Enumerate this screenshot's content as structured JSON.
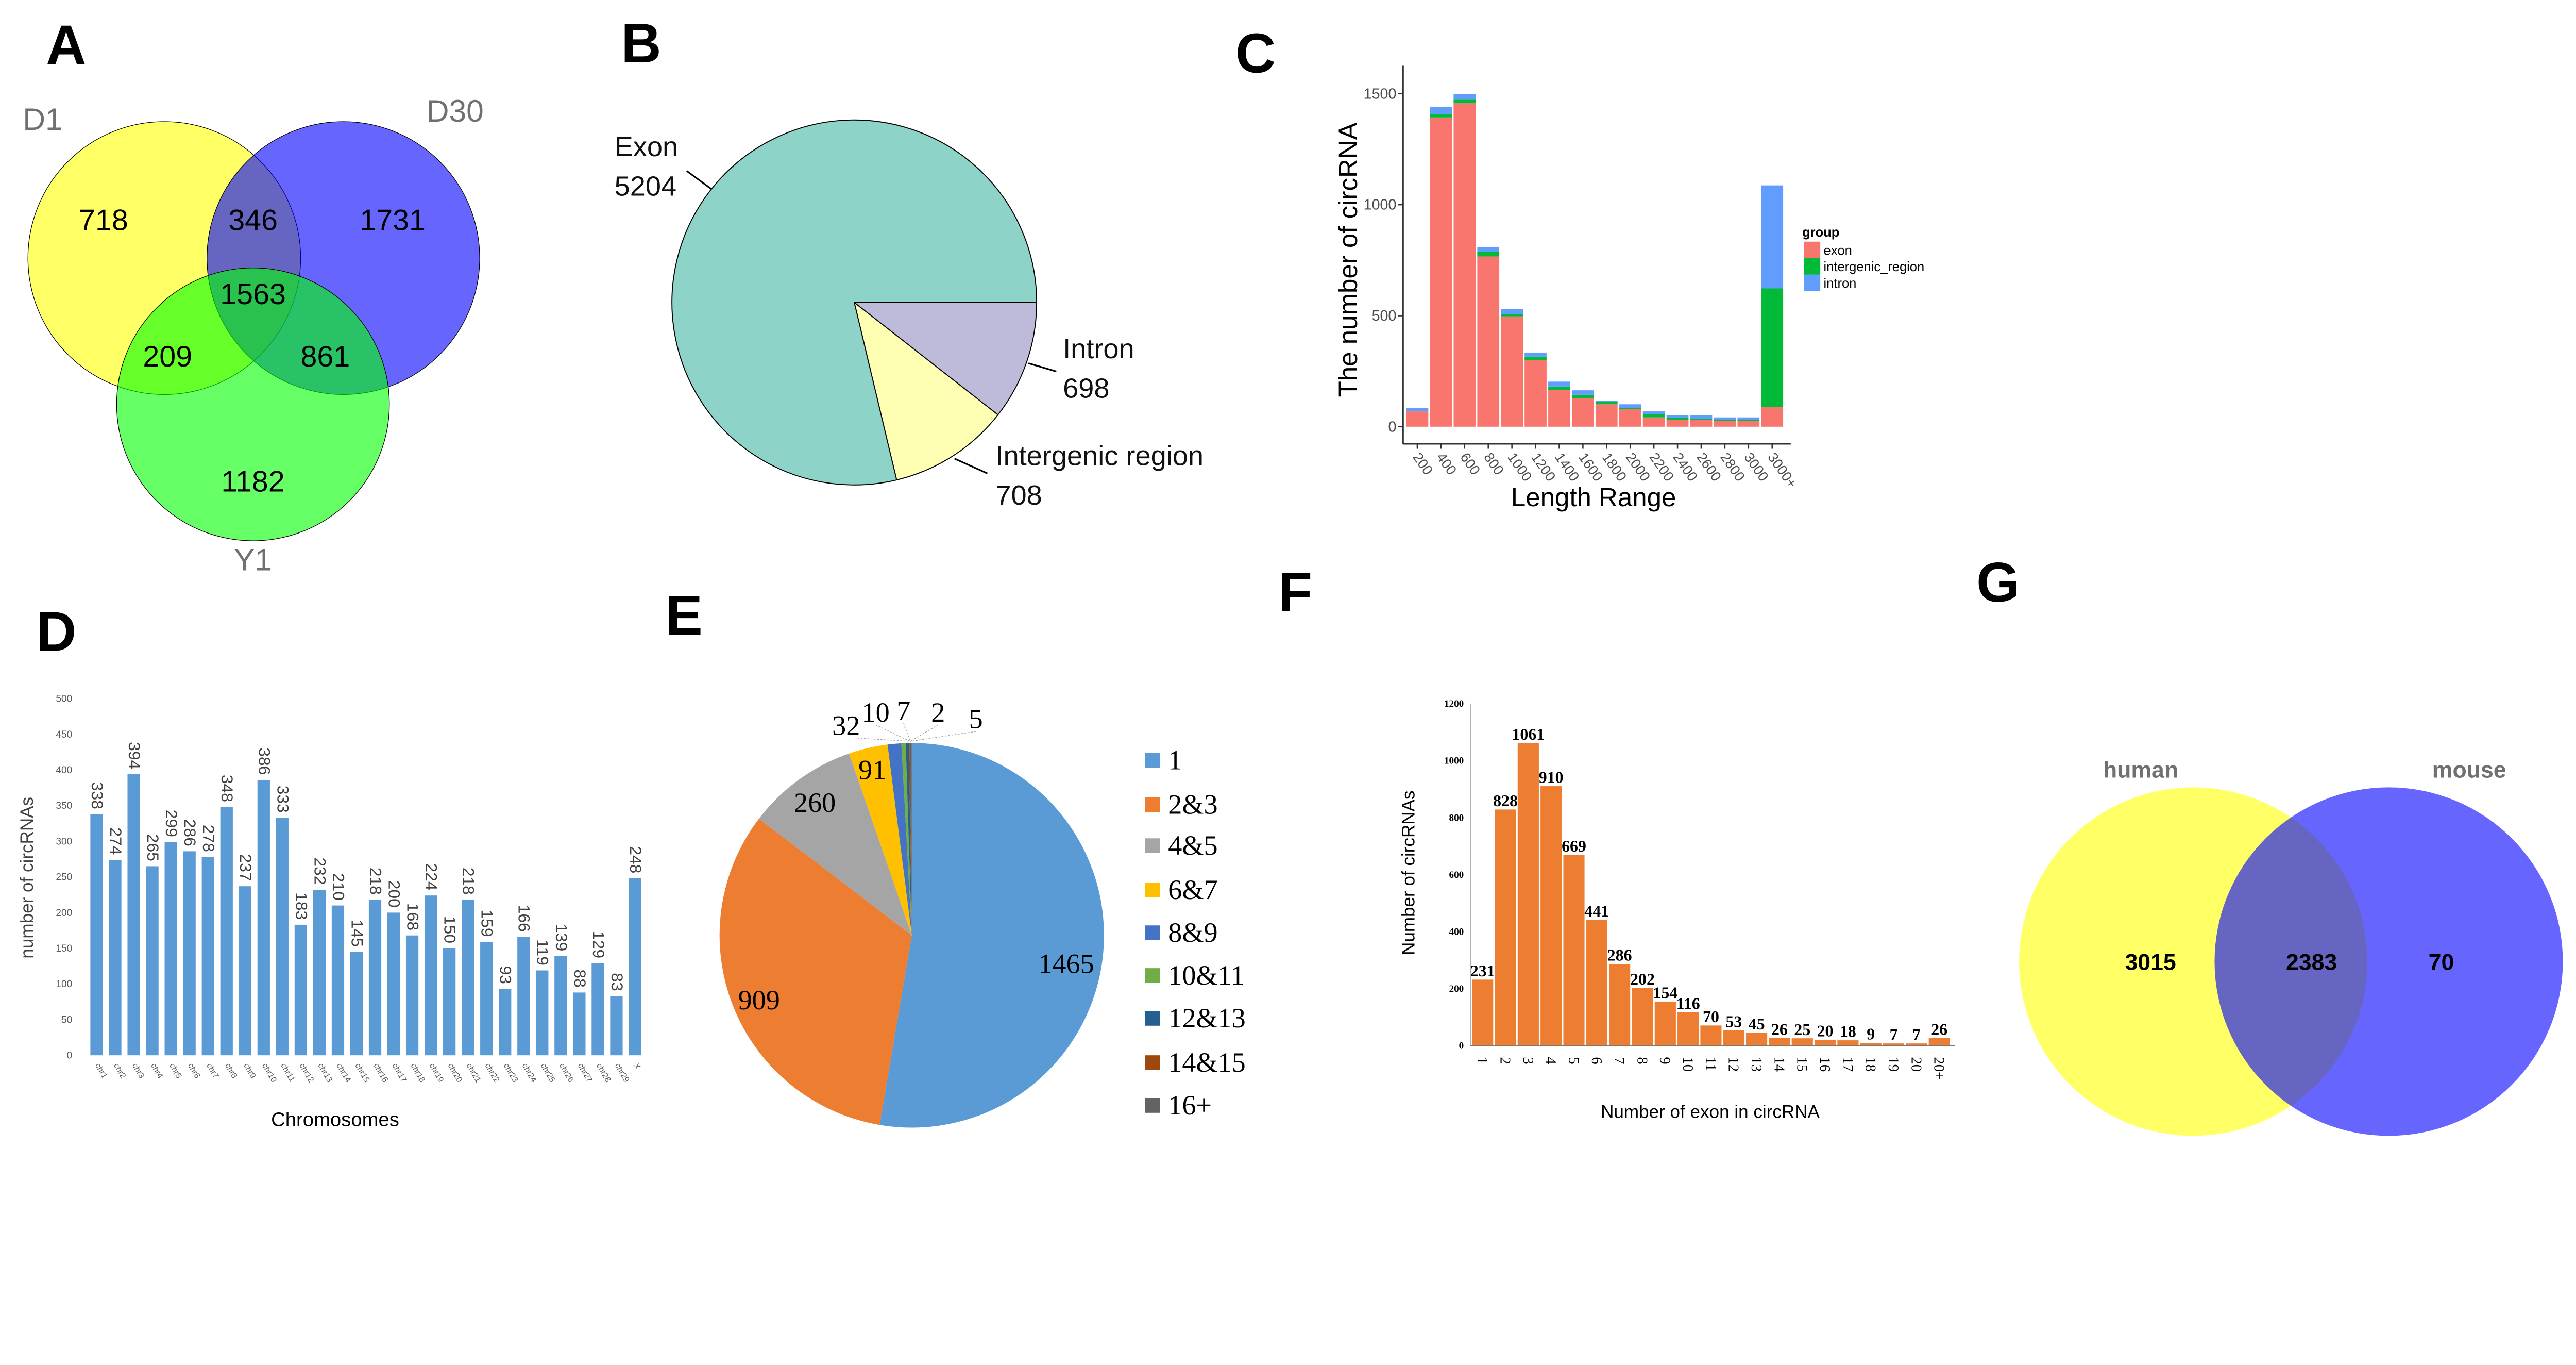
{
  "panel_labels": {
    "a": "A",
    "b": "B",
    "c": "C",
    "d": "D",
    "e": "E",
    "f": "F",
    "g": "G"
  },
  "venn_a": {
    "sets": [
      "D1",
      "D30",
      "Y1"
    ],
    "colors": [
      "#FFFF00",
      "#0000FF",
      "#00FF00"
    ],
    "regions": {
      "d1_only": "718",
      "d1_d30": "346",
      "d30_only": "1731",
      "all": "1563",
      "d1_y1": "209",
      "d30_y1": "861",
      "y1_only": "1182"
    }
  },
  "venn_g": {
    "sets": [
      "human",
      "mouse"
    ],
    "colors": [
      "#FFFF00",
      "#0000FF"
    ],
    "regions": {
      "human_only": "3015",
      "both": "2383",
      "mouse_only": "70"
    }
  },
  "chart_data": [
    {
      "panel": "B",
      "type": "pie",
      "title": "",
      "slices": [
        {
          "label": "Intron",
          "value": 698,
          "color": "#BEBADA"
        },
        {
          "label": "Intergenic region",
          "value": 708,
          "color": "#FFFFB3"
        },
        {
          "label": "Exon",
          "value": 5204,
          "color": "#8DD3C7"
        }
      ],
      "value_labels": [
        "698",
        "708",
        "5204"
      ]
    },
    {
      "panel": "C",
      "type": "bar",
      "stacked": true,
      "title": "",
      "xlabel": "Length Range",
      "ylabel": "The number of circRNA",
      "ylim": [
        -70,
        1560
      ],
      "yticks": [
        0,
        500,
        1000,
        1500
      ],
      "grid": false,
      "legend_title": "group",
      "legend_position": "right",
      "categories": [
        "200",
        "400",
        "600",
        "800",
        "1000",
        "1200",
        "1400",
        "1600",
        "1800",
        "2000",
        "2200",
        "2400",
        "2600",
        "2800",
        "3000",
        "3000+"
      ],
      "series": [
        {
          "name": "exon",
          "color": "#F8766D",
          "values": [
            69,
            1393,
            1457,
            767,
            497,
            300,
            165,
            128,
            101,
            80,
            42,
            31,
            31,
            26,
            26,
            90
          ]
        },
        {
          "name": "intergenic_region",
          "color": "#00BA38",
          "values": [
            0,
            16,
            16,
            22,
            10,
            16,
            16,
            16,
            10,
            5,
            14,
            10,
            4,
            5,
            5,
            533
          ]
        },
        {
          "name": "intron",
          "color": "#619CFF",
          "values": [
            16,
            31,
            26,
            21,
            24,
            18,
            22,
            20,
            6,
            16,
            13,
            11,
            17,
            11,
            11,
            464
          ]
        }
      ]
    },
    {
      "panel": "D",
      "type": "bar",
      "title": "",
      "xlabel": "Chromosomes",
      "ylabel": "number of circRNAs",
      "ylim": [
        0,
        500
      ],
      "yticks": [
        0,
        50,
        100,
        150,
        200,
        250,
        300,
        350,
        400,
        450,
        500
      ],
      "grid": false,
      "color": "#5B9BD5",
      "categories": [
        "chr1",
        "chr2",
        "chr3",
        "chr4",
        "chr5",
        "chr6",
        "chr7",
        "chr8",
        "chr9",
        "chr10",
        "chr11",
        "chr12",
        "chr13",
        "chr14",
        "chr15",
        "chr16",
        "chr17",
        "chr18",
        "chr19",
        "chr20",
        "chr21",
        "chr22",
        "chr23",
        "chr24",
        "chr25",
        "chr26",
        "chr27",
        "chr28",
        "chr29",
        "X"
      ],
      "values": [
        338,
        274,
        394,
        265,
        299,
        286,
        278,
        348,
        237,
        386,
        333,
        183,
        232,
        210,
        145,
        218,
        200,
        168,
        224,
        150,
        218,
        159,
        93,
        166,
        119,
        139,
        88,
        129,
        83,
        248
      ]
    },
    {
      "panel": "E",
      "type": "pie",
      "title": "",
      "legend_position": "right",
      "slices": [
        {
          "label": "1",
          "value": 1465,
          "color": "#5B9BD5"
        },
        {
          "label": "2&3",
          "value": 909,
          "color": "#ED7D31"
        },
        {
          "label": "4&5",
          "value": 260,
          "color": "#A5A5A5"
        },
        {
          "label": "6&7",
          "value": 91,
          "color": "#FFC000"
        },
        {
          "label": "8&9",
          "value": 32,
          "color": "#4472C4"
        },
        {
          "label": "10&11",
          "value": 10,
          "color": "#70AD47"
        },
        {
          "label": "12&13",
          "value": 7,
          "color": "#255E91"
        },
        {
          "label": "14&15",
          "value": 2,
          "color": "#9E480E"
        },
        {
          "label": "16+",
          "value": 5,
          "color": "#636363"
        }
      ]
    },
    {
      "panel": "F",
      "type": "bar",
      "title": "",
      "xlabel": "Number of exon in circRNA",
      "ylabel": "Number of circRNAs",
      "ylim": [
        0,
        1200
      ],
      "yticks": [
        0,
        200,
        400,
        600,
        800,
        1000,
        1200
      ],
      "grid": false,
      "color": "#ED7D31",
      "categories": [
        "1",
        "2",
        "3",
        "4",
        "5",
        "6",
        "7",
        "8",
        "9",
        "10",
        "11",
        "12",
        "13",
        "14",
        "15",
        "16",
        "17",
        "18",
        "19",
        "20",
        "20+"
      ],
      "values": [
        231,
        828,
        1061,
        910,
        669,
        441,
        286,
        202,
        154,
        116,
        70,
        53,
        45,
        26,
        25,
        20,
        18,
        9,
        7,
        7,
        26
      ]
    }
  ]
}
